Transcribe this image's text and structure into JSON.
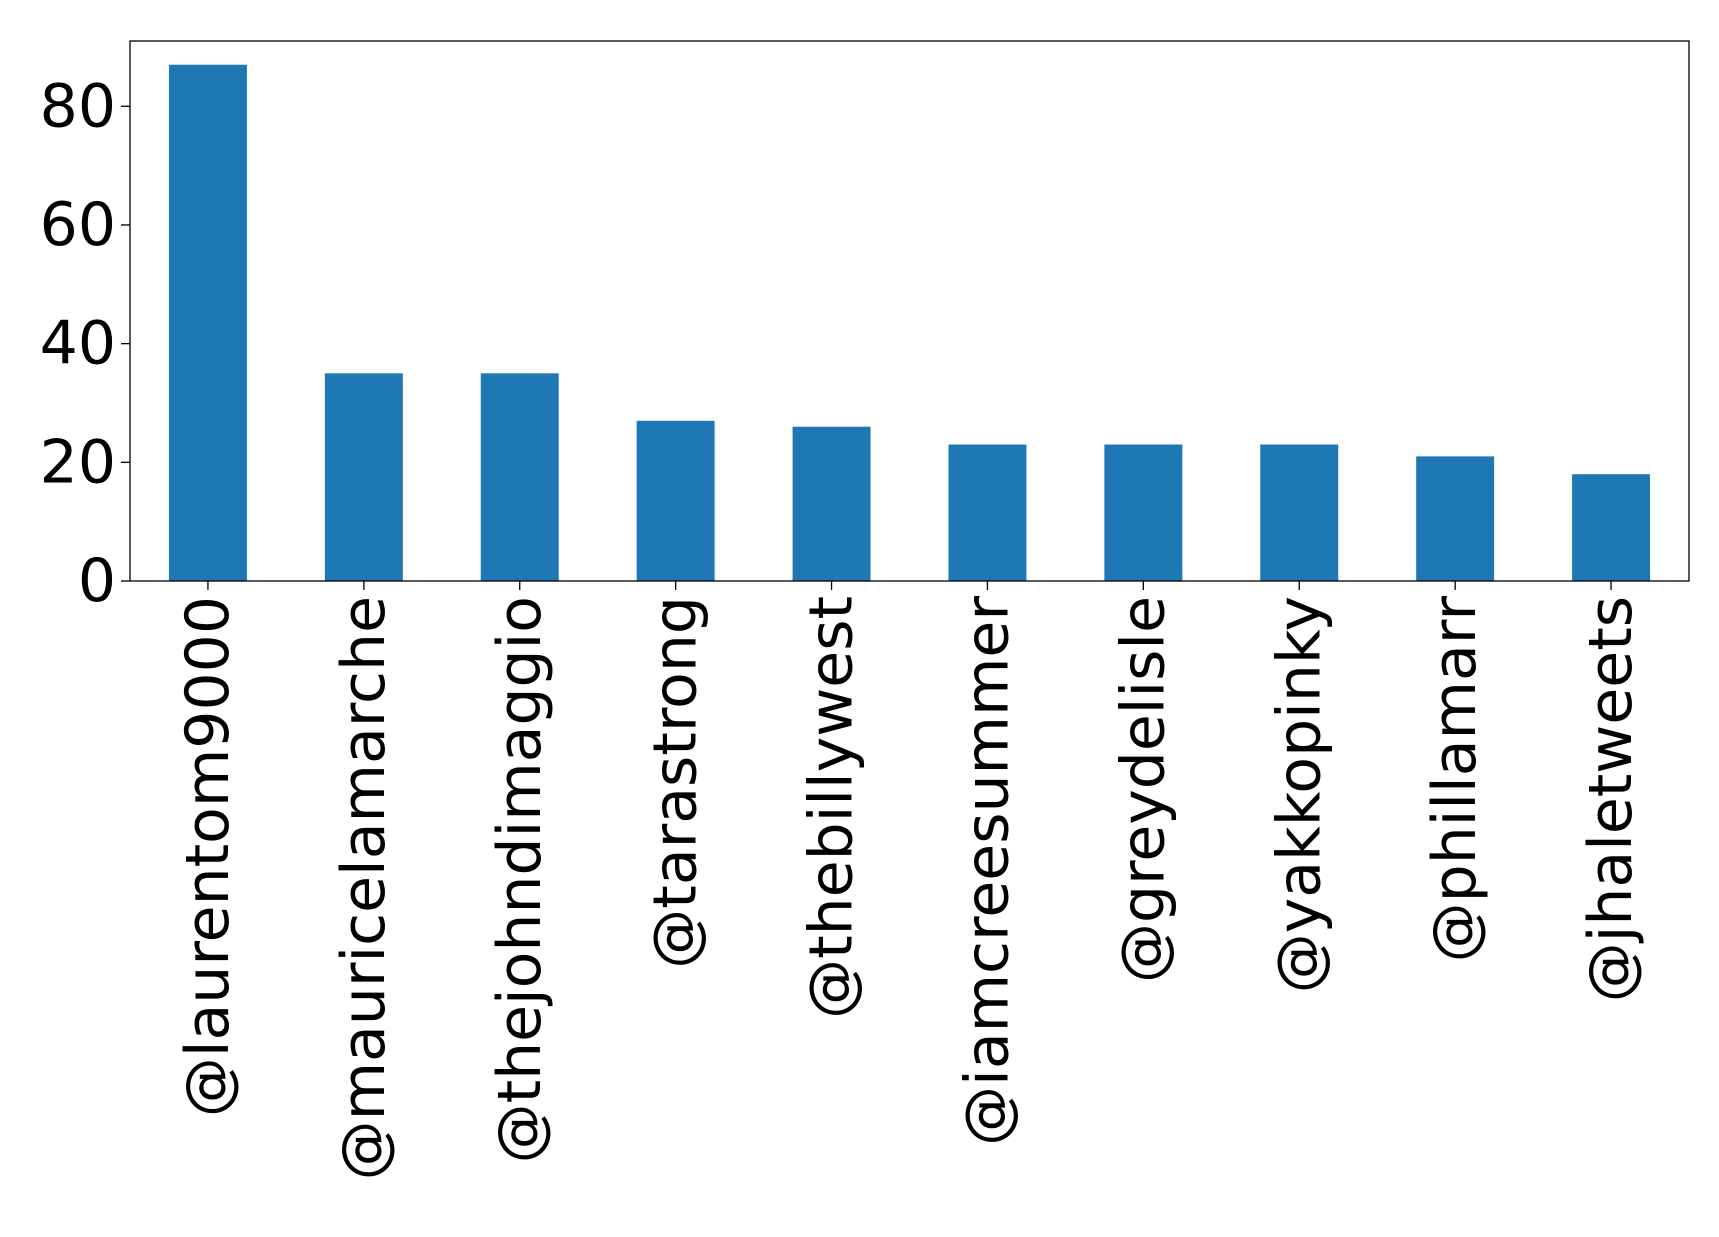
{
  "chart_data": {
    "type": "bar",
    "title": "",
    "xlabel": "",
    "ylabel": "",
    "categories": [
      "@laurentom9000",
      "@mauricelamarche",
      "@thejohndimaggio",
      "@tarastrong",
      "@thebillywest",
      "@iamcreesummer",
      "@greydelisle",
      "@yakkopinky",
      "@phillamarr",
      "@jhaletweets"
    ],
    "values": [
      87,
      35,
      35,
      27,
      26,
      23,
      23,
      23,
      21,
      18
    ],
    "ylim": [
      0,
      91
    ],
    "yticks": [
      0,
      20,
      40,
      60,
      80
    ],
    "bar_color": "#1f77b4",
    "grid": false,
    "legend": "none"
  }
}
